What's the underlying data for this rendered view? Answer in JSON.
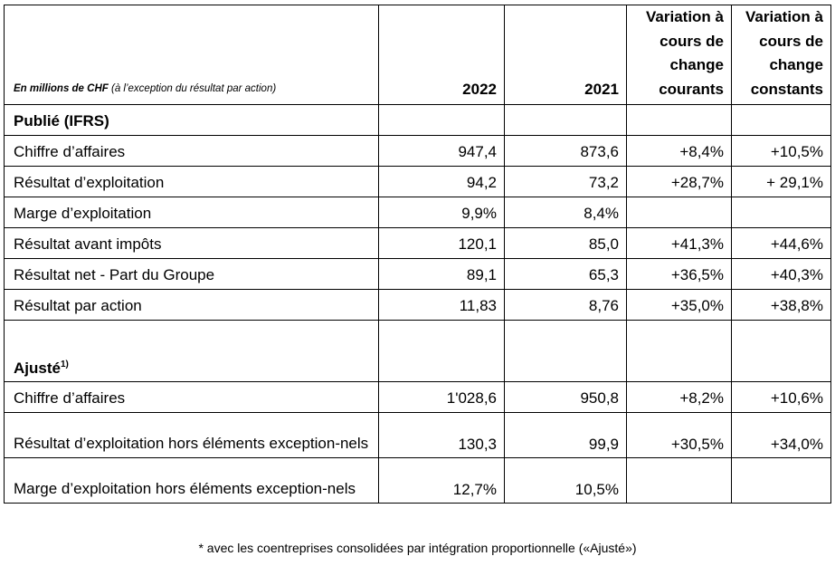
{
  "header": {
    "label_bold": "En millions de CHF",
    "label_rest": " (à l’exception du résultat par action)",
    "col_2022": "2022",
    "col_2021": "2021",
    "col_var_courants": "Variation à cours de change courants",
    "col_var_constants": "Variation à cours de change constants"
  },
  "section_ifrs": "Publié (IFRS)",
  "section_adjusted": "Ajusté",
  "section_adjusted_note": "1)",
  "ifrs_rows": [
    {
      "label": "Chiffre d’affaires",
      "v2022": "947,4",
      "v2021": "873,6",
      "var_cur": "+8,4%",
      "var_const": "+10,5%"
    },
    {
      "label": "Résultat d’exploitation",
      "v2022": "94,2",
      "v2021": "73,2",
      "var_cur": "+28,7%",
      "var_const": "+ 29,1%"
    },
    {
      "label": "Marge d’exploitation",
      "v2022": "9,9%",
      "v2021": "8,4%",
      "var_cur": "",
      "var_const": ""
    },
    {
      "label": "Résultat avant impôts",
      "v2022": "120,1",
      "v2021": "85,0",
      "var_cur": "+41,3%",
      "var_const": "+44,6%"
    },
    {
      "label": "Résultat net - Part du Groupe",
      "v2022": "89,1",
      "v2021": "65,3",
      "var_cur": "+36,5%",
      "var_const": "+40,3%"
    },
    {
      "label": "Résultat par action",
      "v2022": "11,83",
      "v2021": "8,76",
      "var_cur": "+35,0%",
      "var_const": "+38,8%"
    }
  ],
  "adjusted_rows": [
    {
      "label": "Chiffre d’affaires",
      "v2022": "1'028,6",
      "v2021": "950,8",
      "var_cur": "+8,2%",
      "var_const": "+10,6%"
    },
    {
      "label": "Résultat d’exploitation hors éléments exception-nels",
      "v2022": "130,3",
      "v2021": "99,9",
      "var_cur": "+30,5%",
      "var_const": "+34,0%"
    },
    {
      "label": "Marge d’exploitation hors éléments exception-nels",
      "v2022": "12,7%",
      "v2021": "10,5%",
      "var_cur": "",
      "var_const": ""
    }
  ],
  "footnote": "* avec les coentreprises consolidées par intégration proportionnelle («Ajusté»)"
}
